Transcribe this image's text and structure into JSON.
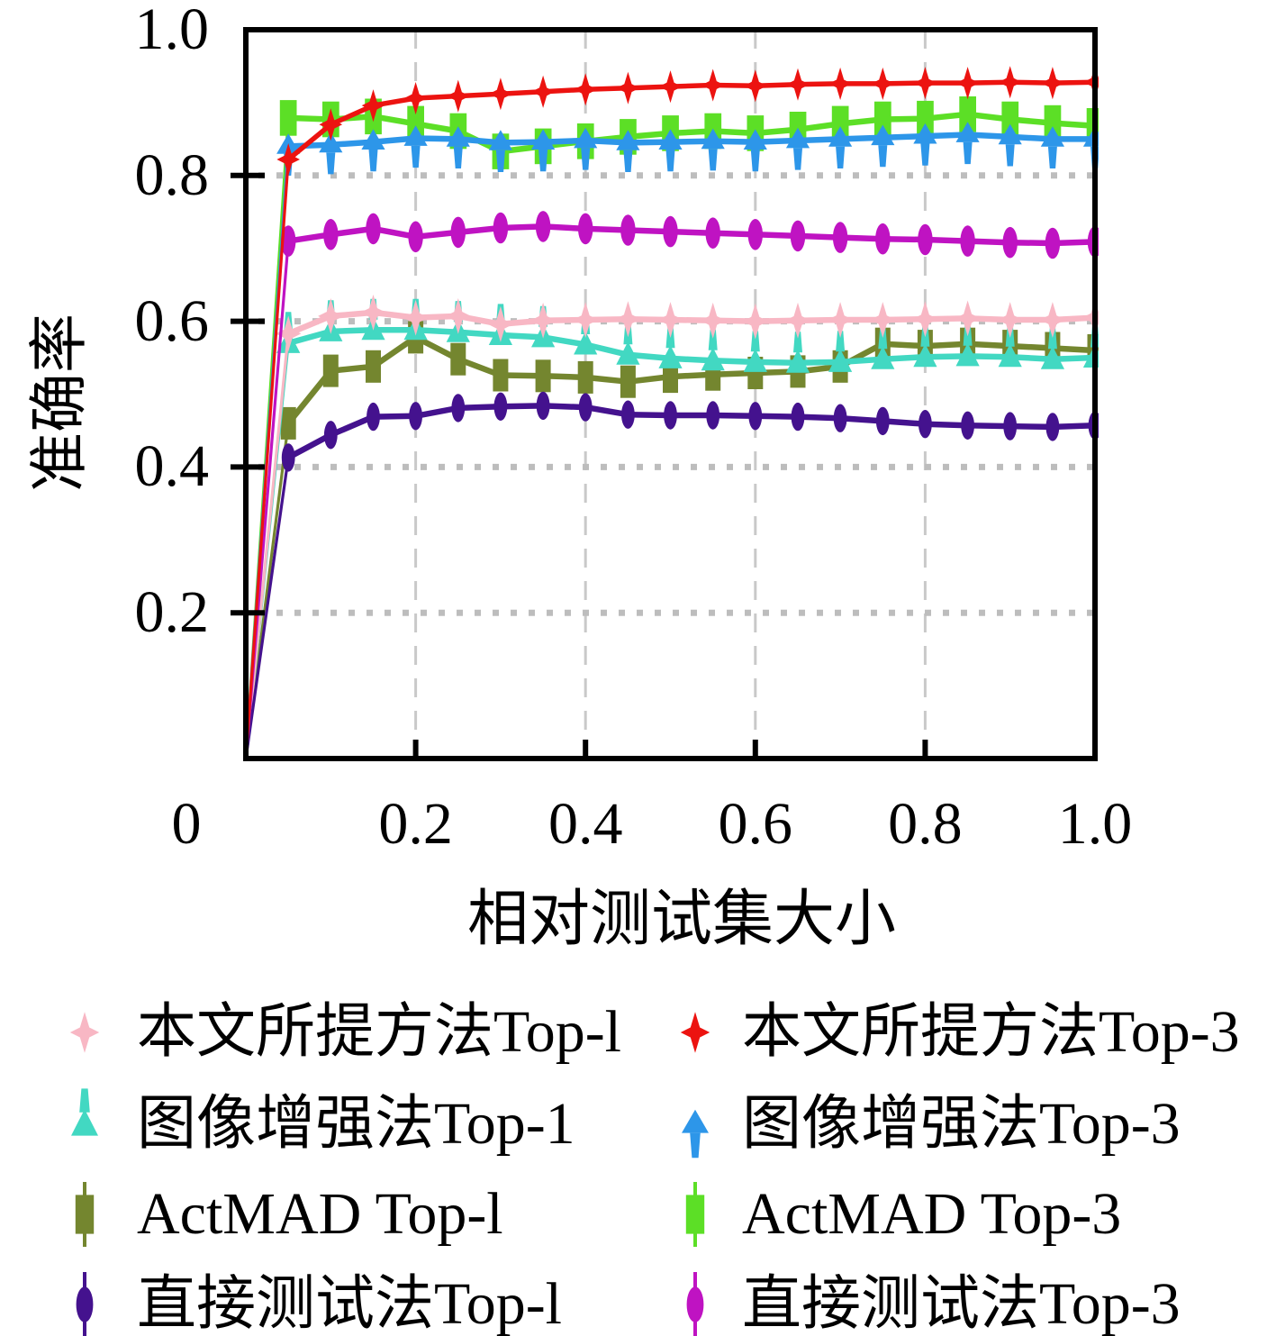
{
  "figure": {
    "background": "#FFFFFF"
  },
  "chart_data": {
    "type": "line",
    "title": "",
    "xlabel": "相对测试集大小",
    "ylabel": "准确率",
    "xlim": [
      0,
      1.0
    ],
    "ylim": [
      0,
      1.0
    ],
    "grid": {
      "x": [
        0.2,
        0.4,
        0.6,
        0.8
      ],
      "y": [
        0.2,
        0.4,
        0.6,
        0.8
      ],
      "vertical_style": "dashed",
      "horizontal_style": "dotted",
      "vertical_color": "#C9C9C9",
      "horizontal_color": "#BDBDBD"
    },
    "axis_color": "#000000",
    "x_tick_labels": [
      {
        "v": 0,
        "label": "0"
      },
      {
        "v": 0.2,
        "label": "0.2"
      },
      {
        "v": 0.4,
        "label": "0.4"
      },
      {
        "v": 0.6,
        "label": "0.6"
      },
      {
        "v": 0.8,
        "label": "0.8"
      },
      {
        "v": 1.0,
        "label": "1.0"
      }
    ],
    "y_tick_labels": [
      {
        "v": 1.0,
        "label": "1.0"
      },
      {
        "v": 0.8,
        "label": "0.8"
      },
      {
        "v": 0.6,
        "label": "0.6"
      },
      {
        "v": 0.4,
        "label": "0.4"
      },
      {
        "v": 0.2,
        "label": "0.2"
      }
    ],
    "x": [
      0,
      0.05,
      0.1,
      0.15,
      0.2,
      0.25,
      0.3,
      0.35,
      0.4,
      0.45,
      0.5,
      0.55,
      0.6,
      0.65,
      0.7,
      0.75,
      0.8,
      0.85,
      0.9,
      0.95,
      1.0
    ],
    "series": [
      {
        "name": "本文所提方法Top-l",
        "color": "#F8B7C4",
        "marker": "star4",
        "msize": 1.05,
        "values": [
          0,
          0.583,
          0.607,
          0.612,
          0.605,
          0.607,
          0.596,
          0.601,
          0.602,
          0.603,
          0.602,
          0.601,
          0.6,
          0.601,
          0.602,
          0.602,
          0.603,
          0.604,
          0.602,
          0.602,
          0.605
        ]
      },
      {
        "name": "本文所提方法Top-3",
        "color": "#EC1310",
        "marker": "star4",
        "msize": 0.95,
        "values": [
          0,
          0.822,
          0.87,
          0.896,
          0.906,
          0.909,
          0.912,
          0.915,
          0.918,
          0.92,
          0.922,
          0.924,
          0.923,
          0.925,
          0.926,
          0.926,
          0.927,
          0.927,
          0.928,
          0.927,
          0.928
        ]
      },
      {
        "name": "图像增强法Top-1",
        "color": "#42D8C2",
        "marker": "tri-spike-up",
        "msize": 1.05,
        "values": [
          0,
          0.57,
          0.586,
          0.588,
          0.588,
          0.585,
          0.581,
          0.578,
          0.568,
          0.554,
          0.549,
          0.546,
          0.544,
          0.543,
          0.544,
          0.548,
          0.551,
          0.552,
          0.551,
          0.548,
          0.55
        ]
      },
      {
        "name": "图像增强法Top-3",
        "color": "#2D96E9",
        "marker": "tri-tail-down",
        "msize": 1.05,
        "values": [
          0,
          0.84,
          0.842,
          0.846,
          0.851,
          0.85,
          0.845,
          0.846,
          0.848,
          0.845,
          0.846,
          0.847,
          0.846,
          0.848,
          0.85,
          0.852,
          0.854,
          0.856,
          0.853,
          0.85,
          0.85
        ]
      },
      {
        "name": "ActMAD Top-l",
        "color": "#74862F",
        "marker": "bar",
        "msize": 1.0,
        "values": [
          0,
          0.46,
          0.532,
          0.538,
          0.578,
          0.548,
          0.526,
          0.525,
          0.523,
          0.517,
          0.524,
          0.527,
          0.529,
          0.531,
          0.538,
          0.569,
          0.566,
          0.569,
          0.566,
          0.563,
          0.56
        ]
      },
      {
        "name": "ActMAD Top-3",
        "color": "#5CDF26",
        "marker": "bar",
        "msize": 1.1,
        "values": [
          0,
          0.879,
          0.877,
          0.881,
          0.871,
          0.861,
          0.833,
          0.84,
          0.847,
          0.853,
          0.858,
          0.861,
          0.858,
          0.863,
          0.871,
          0.877,
          0.878,
          0.884,
          0.877,
          0.872,
          0.868
        ]
      },
      {
        "name": "直接测试法Top-l",
        "color": "#44128E",
        "marker": "ellipse",
        "msize": 0.95,
        "values": [
          0,
          0.413,
          0.444,
          0.469,
          0.47,
          0.481,
          0.483,
          0.484,
          0.482,
          0.472,
          0.471,
          0.471,
          0.47,
          0.469,
          0.467,
          0.463,
          0.459,
          0.457,
          0.456,
          0.455,
          0.457
        ]
      },
      {
        "name": "直接测试法Top-3",
        "color": "#BF13C2",
        "marker": "ellipse",
        "msize": 1.05,
        "values": [
          0,
          0.71,
          0.719,
          0.727,
          0.716,
          0.722,
          0.728,
          0.73,
          0.727,
          0.725,
          0.723,
          0.721,
          0.719,
          0.717,
          0.715,
          0.713,
          0.712,
          0.71,
          0.708,
          0.707,
          0.709
        ]
      }
    ],
    "legend_position": "below",
    "legend_rows": [
      [
        0,
        1
      ],
      [
        2,
        3
      ],
      [
        4,
        5
      ],
      [
        6,
        7
      ]
    ],
    "z_order": [
      5,
      3,
      4,
      2,
      0,
      6,
      7,
      1
    ]
  }
}
